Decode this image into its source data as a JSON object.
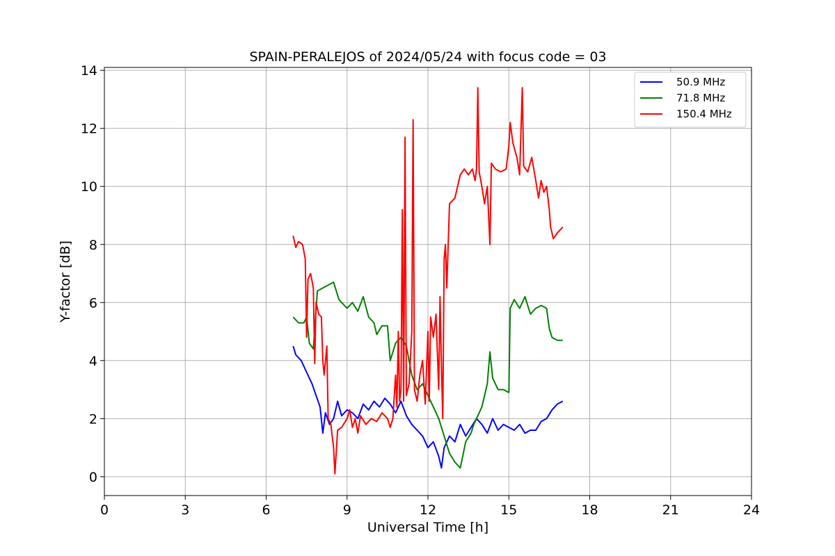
{
  "chart_data": {
    "type": "line",
    "title": "SPAIN-PERALEJOS of 2024/05/24 with focus code = 03",
    "xlabel": "Universal Time [h]",
    "ylabel": "Y-factor [dB]",
    "xlim": [
      0,
      24
    ],
    "ylim": [
      -0.65,
      14.1
    ],
    "xticks": [
      0,
      3,
      6,
      9,
      12,
      15,
      18,
      21,
      24
    ],
    "yticks": [
      0,
      2,
      4,
      6,
      8,
      10,
      12,
      14
    ],
    "grid": true,
    "legend_position": "top-right",
    "series": [
      {
        "name": "50.9 MHz",
        "color": "#0000ff",
        "points": [
          [
            7.0,
            4.5
          ],
          [
            7.1,
            4.2
          ],
          [
            7.3,
            4.0
          ],
          [
            7.5,
            3.6
          ],
          [
            7.7,
            3.2
          ],
          [
            7.85,
            2.8
          ],
          [
            8.0,
            2.4
          ],
          [
            8.1,
            1.5
          ],
          [
            8.2,
            2.2
          ],
          [
            8.35,
            1.8
          ],
          [
            8.5,
            2.0
          ],
          [
            8.65,
            2.6
          ],
          [
            8.8,
            2.1
          ],
          [
            9.0,
            2.3
          ],
          [
            9.2,
            2.2
          ],
          [
            9.4,
            2.0
          ],
          [
            9.6,
            2.5
          ],
          [
            9.8,
            2.3
          ],
          [
            10.0,
            2.6
          ],
          [
            10.2,
            2.4
          ],
          [
            10.4,
            2.7
          ],
          [
            10.6,
            2.5
          ],
          [
            10.8,
            2.2
          ],
          [
            11.0,
            2.6
          ],
          [
            11.2,
            2.1
          ],
          [
            11.4,
            1.8
          ],
          [
            11.6,
            1.6
          ],
          [
            11.8,
            1.4
          ],
          [
            12.0,
            1.0
          ],
          [
            12.2,
            1.2
          ],
          [
            12.4,
            0.7
          ],
          [
            12.5,
            0.3
          ],
          [
            12.6,
            1.0
          ],
          [
            12.8,
            1.4
          ],
          [
            13.0,
            1.2
          ],
          [
            13.2,
            1.8
          ],
          [
            13.4,
            1.4
          ],
          [
            13.6,
            1.7
          ],
          [
            13.8,
            2.0
          ],
          [
            14.0,
            1.8
          ],
          [
            14.2,
            1.5
          ],
          [
            14.4,
            2.0
          ],
          [
            14.6,
            1.6
          ],
          [
            14.8,
            1.8
          ],
          [
            15.0,
            1.7
          ],
          [
            15.2,
            1.6
          ],
          [
            15.4,
            1.8
          ],
          [
            15.6,
            1.5
          ],
          [
            15.8,
            1.6
          ],
          [
            16.0,
            1.6
          ],
          [
            16.2,
            1.9
          ],
          [
            16.4,
            2.0
          ],
          [
            16.6,
            2.3
          ],
          [
            16.8,
            2.5
          ],
          [
            17.0,
            2.6
          ]
        ]
      },
      {
        "name": "71.8 MHz",
        "color": "#008000",
        "points": [
          [
            7.0,
            5.5
          ],
          [
            7.2,
            5.3
          ],
          [
            7.4,
            5.3
          ],
          [
            7.5,
            5.5
          ],
          [
            7.6,
            4.6
          ],
          [
            7.75,
            4.4
          ],
          [
            7.9,
            6.4
          ],
          [
            8.1,
            6.5
          ],
          [
            8.3,
            6.6
          ],
          [
            8.5,
            6.7
          ],
          [
            8.7,
            6.1
          ],
          [
            9.0,
            5.8
          ],
          [
            9.2,
            6.0
          ],
          [
            9.4,
            5.7
          ],
          [
            9.6,
            6.2
          ],
          [
            9.8,
            5.5
          ],
          [
            10.0,
            5.3
          ],
          [
            10.1,
            4.9
          ],
          [
            10.3,
            5.2
          ],
          [
            10.5,
            5.2
          ],
          [
            10.6,
            4.0
          ],
          [
            10.8,
            4.6
          ],
          [
            11.0,
            4.8
          ],
          [
            11.2,
            4.5
          ],
          [
            11.4,
            3.5
          ],
          [
            11.6,
            3.0
          ],
          [
            11.8,
            3.2
          ],
          [
            12.0,
            2.8
          ],
          [
            12.2,
            2.4
          ],
          [
            12.4,
            2.0
          ],
          [
            12.6,
            1.4
          ],
          [
            12.8,
            0.8
          ],
          [
            13.0,
            0.5
          ],
          [
            13.2,
            0.3
          ],
          [
            13.4,
            1.2
          ],
          [
            13.6,
            1.5
          ],
          [
            13.7,
            1.8
          ],
          [
            13.8,
            2.0
          ],
          [
            14.0,
            2.4
          ],
          [
            14.2,
            3.2
          ],
          [
            14.3,
            4.3
          ],
          [
            14.4,
            3.4
          ],
          [
            14.6,
            3.0
          ],
          [
            14.8,
            3.0
          ],
          [
            15.0,
            2.9
          ],
          [
            15.05,
            5.8
          ],
          [
            15.2,
            6.1
          ],
          [
            15.4,
            5.8
          ],
          [
            15.6,
            6.2
          ],
          [
            15.8,
            5.6
          ],
          [
            16.0,
            5.8
          ],
          [
            16.2,
            5.9
          ],
          [
            16.4,
            5.8
          ],
          [
            16.5,
            5.1
          ],
          [
            16.6,
            4.8
          ],
          [
            16.8,
            4.7
          ],
          [
            17.0,
            4.7
          ]
        ]
      },
      {
        "name": "150.4 MHz",
        "color": "#ff0000",
        "points": [
          [
            7.0,
            8.3
          ],
          [
            7.1,
            7.9
          ],
          [
            7.2,
            8.1
          ],
          [
            7.35,
            8.0
          ],
          [
            7.45,
            7.5
          ],
          [
            7.5,
            4.8
          ],
          [
            7.55,
            6.8
          ],
          [
            7.65,
            7.0
          ],
          [
            7.75,
            6.5
          ],
          [
            7.8,
            3.9
          ],
          [
            7.85,
            6.0
          ],
          [
            7.95,
            5.6
          ],
          [
            8.05,
            5.5
          ],
          [
            8.1,
            4.0
          ],
          [
            8.15,
            3.5
          ],
          [
            8.25,
            4.5
          ],
          [
            8.3,
            2.0
          ],
          [
            8.4,
            1.8
          ],
          [
            8.5,
            1.0
          ],
          [
            8.55,
            0.1
          ],
          [
            8.65,
            1.6
          ],
          [
            8.8,
            1.7
          ],
          [
            9.0,
            2.0
          ],
          [
            9.1,
            2.3
          ],
          [
            9.2,
            1.7
          ],
          [
            9.3,
            2.0
          ],
          [
            9.4,
            1.5
          ],
          [
            9.5,
            2.1
          ],
          [
            9.7,
            1.8
          ],
          [
            9.9,
            2.0
          ],
          [
            10.1,
            1.9
          ],
          [
            10.3,
            2.2
          ],
          [
            10.5,
            2.0
          ],
          [
            10.6,
            1.7
          ],
          [
            10.7,
            2.0
          ],
          [
            10.8,
            3.5
          ],
          [
            10.85,
            2.4
          ],
          [
            10.9,
            5.0
          ],
          [
            10.95,
            2.6
          ],
          [
            11.0,
            3.0
          ],
          [
            11.05,
            9.2
          ],
          [
            11.1,
            2.6
          ],
          [
            11.15,
            11.7
          ],
          [
            11.2,
            2.8
          ],
          [
            11.3,
            3.2
          ],
          [
            11.4,
            5.0
          ],
          [
            11.45,
            12.3
          ],
          [
            11.5,
            3.0
          ],
          [
            11.6,
            2.6
          ],
          [
            11.7,
            3.5
          ],
          [
            11.8,
            4.0
          ],
          [
            11.9,
            2.5
          ],
          [
            12.0,
            5.0
          ],
          [
            12.05,
            2.6
          ],
          [
            12.1,
            5.5
          ],
          [
            12.2,
            4.8
          ],
          [
            12.3,
            5.6
          ],
          [
            12.4,
            3.0
          ],
          [
            12.45,
            6.2
          ],
          [
            12.5,
            3.8
          ],
          [
            12.55,
            2.0
          ],
          [
            12.6,
            7.5
          ],
          [
            12.65,
            8.0
          ],
          [
            12.7,
            6.5
          ],
          [
            12.8,
            9.4
          ],
          [
            12.9,
            9.5
          ],
          [
            13.0,
            9.6
          ],
          [
            13.1,
            10.0
          ],
          [
            13.2,
            10.4
          ],
          [
            13.35,
            10.6
          ],
          [
            13.5,
            10.4
          ],
          [
            13.65,
            10.6
          ],
          [
            13.75,
            10.2
          ],
          [
            13.8,
            10.6
          ],
          [
            13.85,
            13.4
          ],
          [
            13.9,
            10.5
          ],
          [
            14.0,
            10.0
          ],
          [
            14.1,
            9.4
          ],
          [
            14.2,
            10.0
          ],
          [
            14.3,
            8.0
          ],
          [
            14.35,
            10.8
          ],
          [
            14.5,
            10.6
          ],
          [
            14.7,
            10.5
          ],
          [
            14.9,
            10.6
          ],
          [
            15.0,
            11.4
          ],
          [
            15.05,
            12.2
          ],
          [
            15.15,
            11.5
          ],
          [
            15.3,
            11.0
          ],
          [
            15.4,
            10.4
          ],
          [
            15.5,
            13.4
          ],
          [
            15.55,
            10.7
          ],
          [
            15.7,
            10.5
          ],
          [
            15.85,
            11.0
          ],
          [
            16.0,
            10.2
          ],
          [
            16.1,
            9.6
          ],
          [
            16.2,
            10.2
          ],
          [
            16.3,
            9.8
          ],
          [
            16.4,
            10.0
          ],
          [
            16.5,
            9.2
          ],
          [
            16.55,
            8.6
          ],
          [
            16.65,
            8.2
          ],
          [
            16.8,
            8.4
          ],
          [
            16.9,
            8.5
          ],
          [
            17.0,
            8.6
          ]
        ]
      }
    ]
  }
}
